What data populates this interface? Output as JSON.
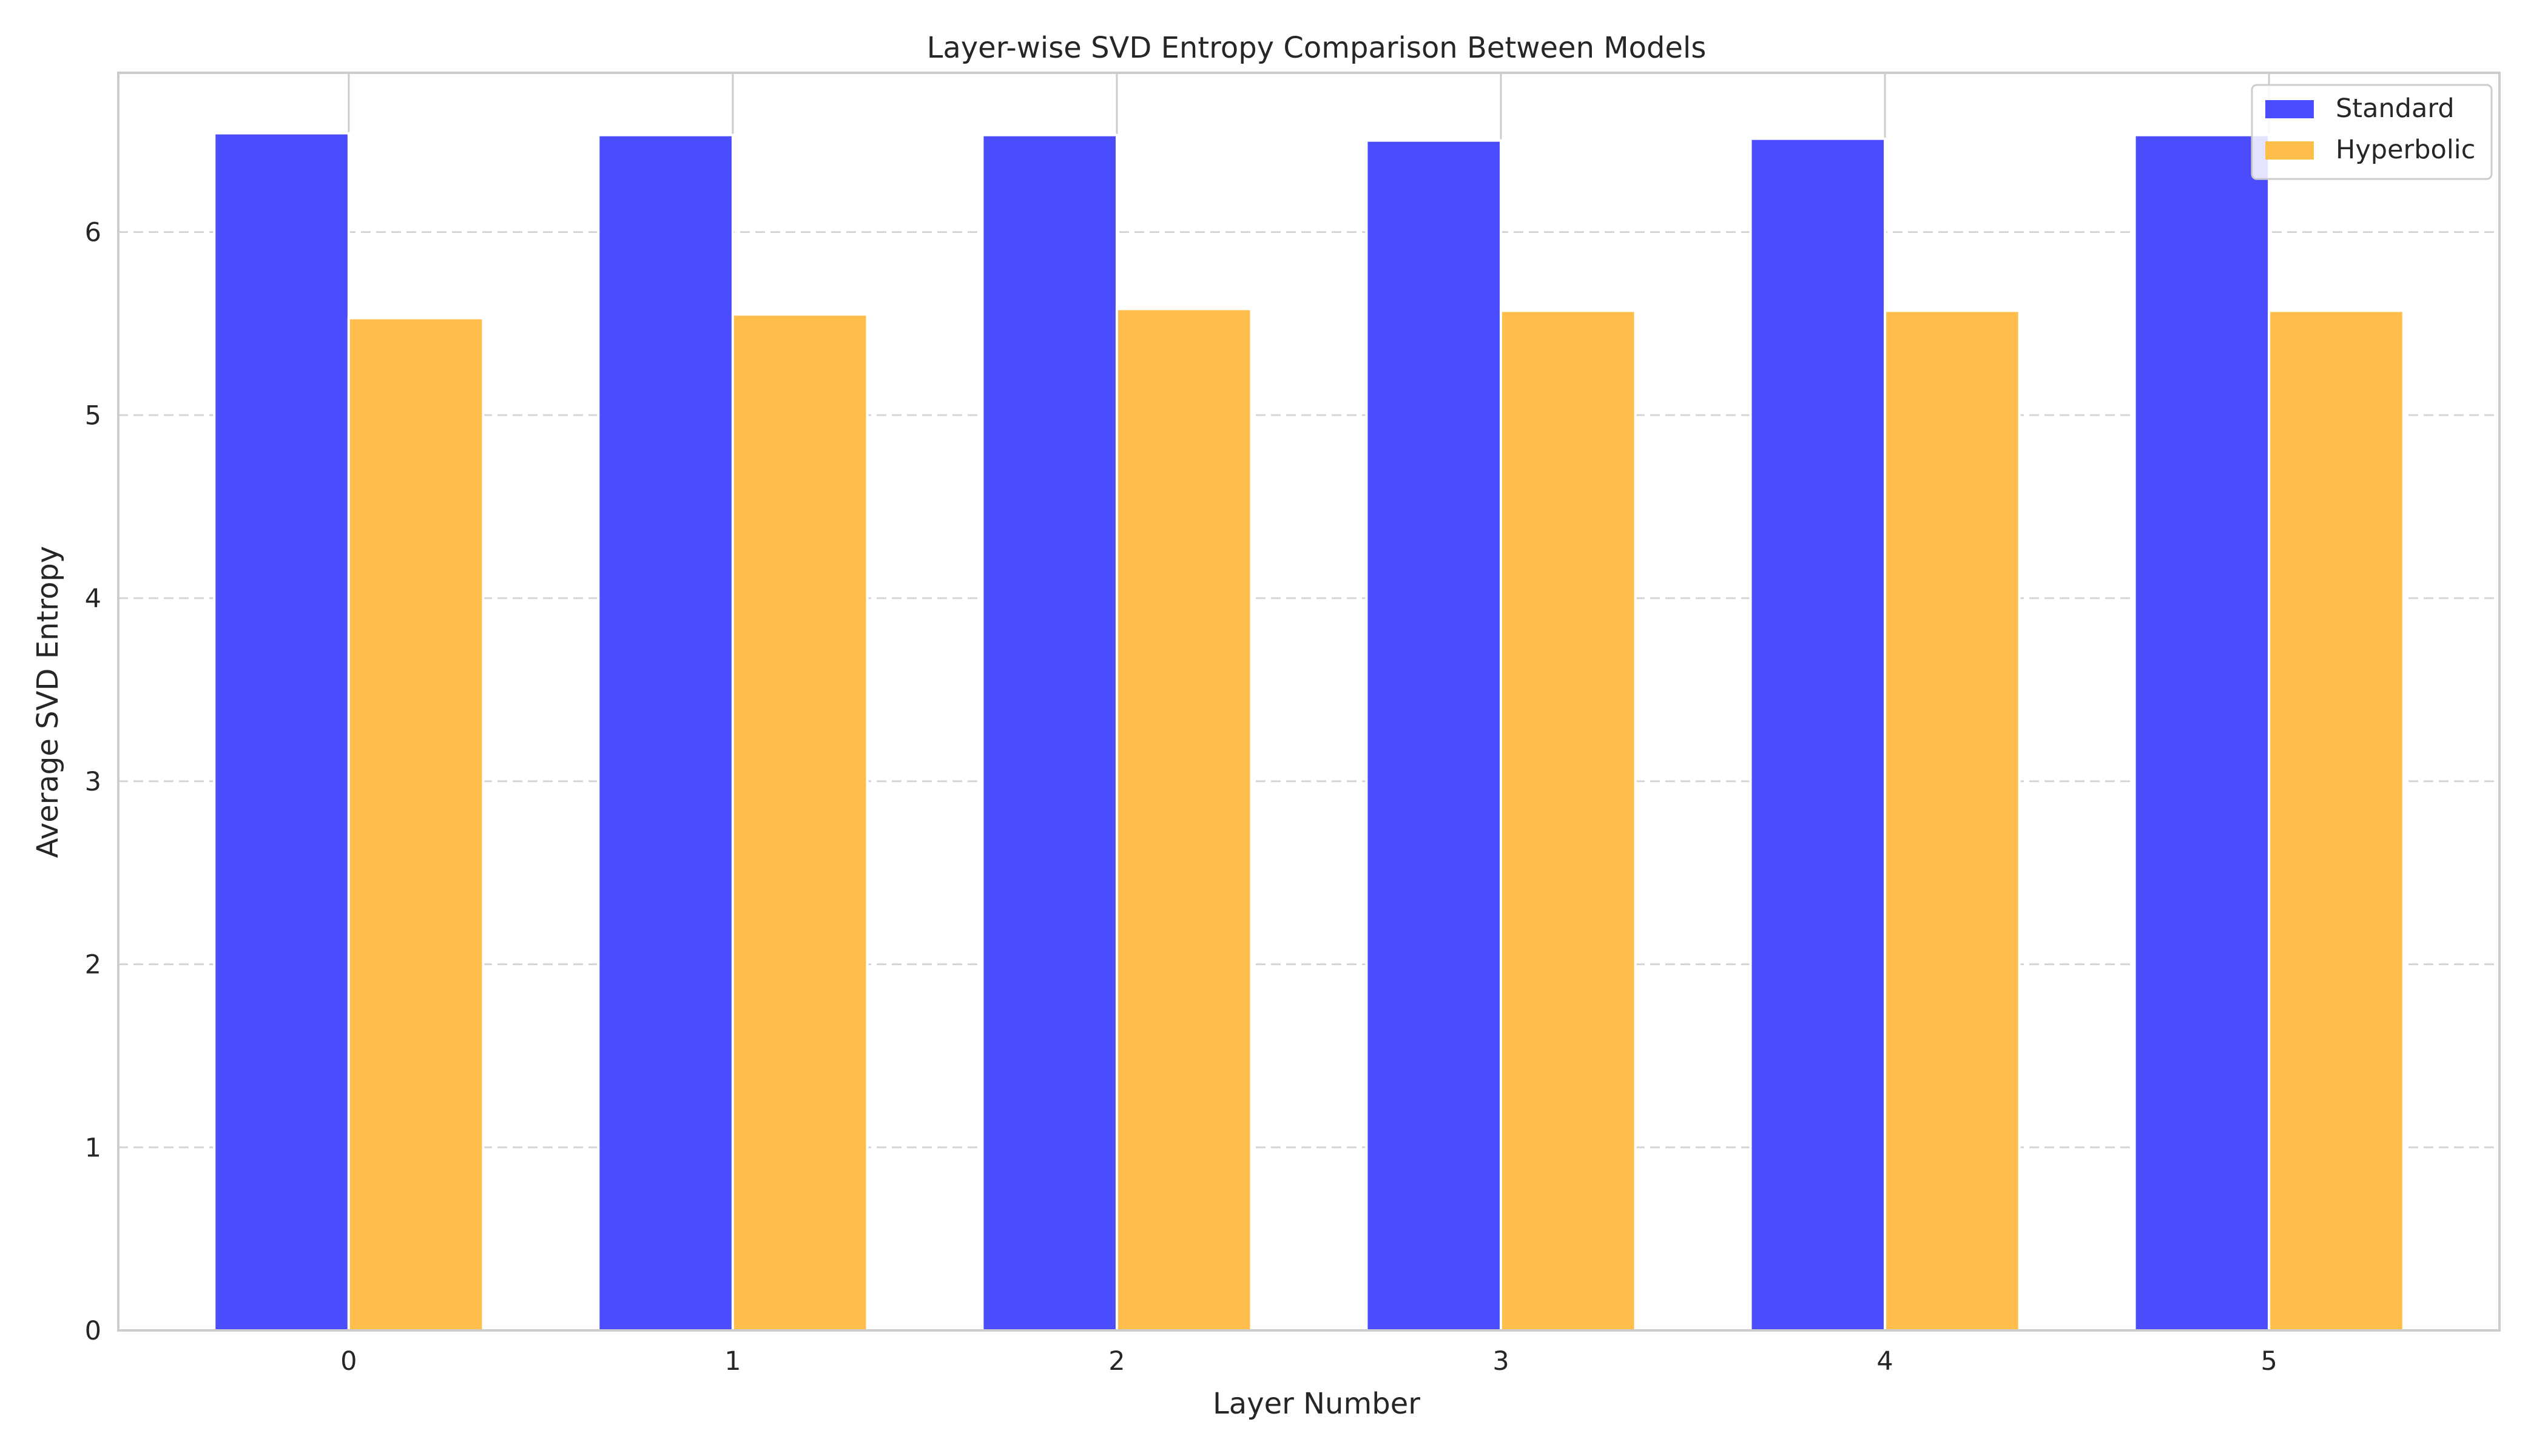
{
  "chart_data": {
    "type": "bar",
    "title": "Layer-wise SVD Entropy Comparison Between Models",
    "xlabel": "Layer Number",
    "ylabel": "Average SVD Entropy",
    "categories": [
      "0",
      "1",
      "2",
      "3",
      "4",
      "5"
    ],
    "series": [
      {
        "name": "Standard",
        "color": "#4c4cff",
        "values": [
          6.54,
          6.53,
          6.53,
          6.5,
          6.51,
          6.53
        ]
      },
      {
        "name": "Hyperbolic",
        "color": "#ffbe4c",
        "values": [
          5.53,
          5.55,
          5.58,
          5.57,
          5.57,
          5.57
        ]
      }
    ],
    "ylim": [
      0,
      6.87
    ],
    "yticks": [
      0,
      1,
      2,
      3,
      4,
      5,
      6
    ],
    "grid": {
      "y": "dashed",
      "x": "solid"
    },
    "legend_position": "top-right"
  }
}
